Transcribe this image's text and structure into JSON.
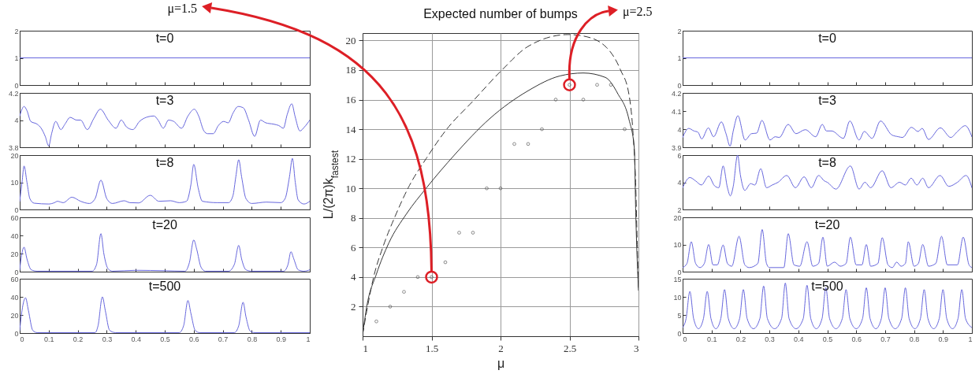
{
  "chart_data": [
    {
      "type": "line",
      "title": "t=0",
      "color": "#6666dd",
      "x": [
        0,
        1
      ],
      "values": [
        1,
        1
      ],
      "xlim": [
        0,
        1
      ],
      "ylim": [
        0,
        2
      ],
      "xticks": [
        0,
        0.1,
        0.2,
        0.3,
        0.4,
        0.5,
        0.6,
        0.7,
        0.8,
        0.9,
        1
      ],
      "yticks": [
        0,
        1,
        2
      ],
      "tick_labels": "y"
    },
    {
      "type": "line",
      "title": "t=3",
      "color": "#6666dd",
      "x": [
        0,
        0.015,
        0.025,
        0.038,
        0.06,
        0.074,
        0.088,
        0.1,
        0.11,
        0.124,
        0.142,
        0.156,
        0.174,
        0.196,
        0.21,
        0.233,
        0.255,
        0.278,
        0.305,
        0.332,
        0.35,
        0.368,
        0.39,
        0.413,
        0.436,
        0.463,
        0.477,
        0.495,
        0.513,
        0.531,
        0.558,
        0.58,
        0.602,
        0.617,
        0.635,
        0.648,
        0.667,
        0.685,
        0.703,
        0.719,
        0.735,
        0.753,
        0.771,
        0.789,
        0.81,
        0.83,
        0.848,
        0.875,
        0.893,
        0.909,
        0.922,
        0.938,
        0.949,
        0.966,
        0.982,
        1
      ],
      "values": [
        4.03,
        4.1,
        4.07,
        3.99,
        3.97,
        3.94,
        3.88,
        3.81,
        3.9,
        3.99,
        3.93,
        3.97,
        4.02,
        4,
        4,
        3.93,
        4.01,
        4.08,
        4,
        3.94,
        4,
        3.95,
        3.93,
        3.99,
        4.02,
        4.03,
        4,
        3.94,
        4,
        3.99,
        3.94,
        4.03,
        4.08,
        4.03,
        3.92,
        3.9,
        3.9,
        3.96,
        3.99,
        3.98,
        4.05,
        4.1,
        4.09,
        4,
        3.88,
        4,
        3.98,
        3.97,
        3.96,
        3.94,
        4.04,
        4.12,
        4.03,
        3.92,
        3.95,
        4
      ],
      "xlim": [
        0,
        1
      ],
      "ylim": [
        3.8,
        4.2
      ],
      "xticks": [
        0,
        0.1,
        0.2,
        0.3,
        0.4,
        0.5,
        0.6,
        0.7,
        0.8,
        0.9,
        1
      ],
      "yticks": [
        3.8,
        4,
        4.2
      ],
      "tick_labels": "y"
    },
    {
      "type": "line",
      "title": "t=8",
      "color": "#6666dd",
      "x": [
        0,
        0.008,
        0.015,
        0.025,
        0.035,
        0.05,
        0.1,
        0.12,
        0.13,
        0.15,
        0.18,
        0.21,
        0.24,
        0.26,
        0.28,
        0.3,
        0.32,
        0.36,
        0.38,
        0.41,
        0.45,
        0.48,
        0.52,
        0.55,
        0.575,
        0.59,
        0.6,
        0.615,
        0.63,
        0.68,
        0.72,
        0.735,
        0.745,
        0.755,
        0.765,
        0.78,
        0.8,
        0.85,
        0.9,
        0.915,
        0.93,
        0.94,
        0.95,
        0.96,
        0.98,
        1
      ],
      "values": [
        3,
        10,
        16,
        10,
        4,
        2.3,
        2,
        2.5,
        3,
        2.5,
        4.5,
        3,
        2.2,
        4,
        10.8,
        4,
        2.2,
        3.2,
        2.5,
        2.4,
        5.2,
        3,
        3.2,
        2.5,
        3,
        9,
        16.6,
        8,
        3,
        2.5,
        2.5,
        5,
        12,
        18.3,
        12,
        4,
        2.2,
        2.7,
        2.5,
        4,
        12,
        18.8,
        10,
        3.5,
        2,
        3
      ],
      "xlim": [
        0,
        1
      ],
      "ylim": [
        0,
        20
      ],
      "xticks": [
        0,
        0.1,
        0.2,
        0.3,
        0.4,
        0.5,
        0.6,
        0.7,
        0.8,
        0.9,
        1
      ],
      "yticks": [
        0,
        10,
        20
      ],
      "tick_labels": "y"
    },
    {
      "type": "line",
      "title": "t=20",
      "color": "#6666dd",
      "x": [
        0,
        0.005,
        0.015,
        0.025,
        0.04,
        0.06,
        0.25,
        0.265,
        0.28,
        0.29,
        0.305,
        0.32,
        0.4,
        0.5,
        0.57,
        0.585,
        0.6,
        0.61,
        0.625,
        0.64,
        0.72,
        0.74,
        0.755,
        0.765,
        0.78,
        0.8,
        0.91,
        0.925,
        0.935,
        0.945,
        0.96,
        0.98,
        1
      ],
      "values": [
        2,
        15,
        27,
        14,
        2,
        0.5,
        0.5,
        8,
        42,
        20,
        3,
        0.5,
        1.5,
        1,
        0.5,
        10,
        35,
        25,
        5,
        0.5,
        0.5,
        8,
        29,
        14,
        2,
        0.5,
        0.5,
        8,
        22,
        14,
        2,
        0.5,
        2
      ],
      "xlim": [
        0,
        1
      ],
      "ylim": [
        0,
        60
      ],
      "xticks": [
        0,
        0.1,
        0.2,
        0.3,
        0.4,
        0.5,
        0.6,
        0.7,
        0.8,
        0.9,
        1
      ],
      "yticks": [
        0,
        20,
        40,
        60
      ],
      "tick_labels": "y"
    },
    {
      "type": "line",
      "title": "t=500",
      "color": "#6666dd",
      "x": [
        0,
        0.008,
        0.02,
        0.03,
        0.045,
        0.06,
        0.26,
        0.27,
        0.285,
        0.295,
        0.31,
        0.33,
        0.55,
        0.565,
        0.58,
        0.59,
        0.605,
        0.62,
        0.74,
        0.755,
        0.77,
        0.78,
        0.795,
        0.81,
        1
      ],
      "values": [
        3,
        25,
        39,
        25,
        3,
        0.5,
        0.5,
        8,
        40,
        25,
        3,
        0.5,
        0.5,
        8,
        36,
        22,
        3,
        0.5,
        0.5,
        8,
        34,
        18,
        2,
        0.5,
        0.5
      ],
      "xlim": [
        0,
        1
      ],
      "ylim": [
        0,
        60
      ],
      "xticks": [
        0,
        0.1,
        0.2,
        0.3,
        0.4,
        0.5,
        0.6,
        0.7,
        0.8,
        0.9,
        1
      ],
      "yticks": [
        0,
        20,
        40,
        60
      ]
    },
    {
      "type": "line",
      "title": "Expected number of bumps",
      "xlabel": "μ",
      "ylabel": "L/(2π)k$_{fastest}$",
      "xlim": [
        1,
        3
      ],
      "ylim": [
        0,
        20.5
      ],
      "xticks": [
        1,
        1.5,
        2,
        2.5,
        3
      ],
      "yticks": [
        2,
        4,
        6,
        8,
        10,
        12,
        14,
        16,
        18,
        20
      ],
      "grid": true,
      "series": [
        {
          "type": "line",
          "line_style": "dashed",
          "color": "#333333",
          "x": [
            1,
            1.04,
            1.08,
            1.15,
            1.24,
            1.34,
            1.46,
            1.61,
            1.8,
            2.01,
            2.2,
            2.49,
            2.6,
            2.76,
            2.87,
            2.93,
            2.96,
            2.98,
            2.99,
            3
          ],
          "values": [
            0.1,
            2.2,
            4,
            6.1,
            8.2,
            10.2,
            12,
            14,
            15.9,
            18,
            19.6,
            20.4,
            20.3,
            19.6,
            18,
            16.4,
            13.8,
            10.2,
            6.7,
            3.3
          ]
        },
        {
          "type": "line",
          "line_style": "solid",
          "color": "#333333",
          "x": [
            1,
            1.03,
            1.1,
            1.19,
            1.32,
            1.46,
            1.67,
            1.92,
            2.2,
            2.43,
            2.6,
            2.76,
            2.85,
            2.93,
            2.97,
            2.98,
            3
          ],
          "values": [
            0.1,
            2,
            4.2,
            6.3,
            8.3,
            10,
            12.3,
            14.7,
            16.6,
            17.6,
            17.8,
            17.5,
            16.4,
            14.7,
            12.7,
            8.4,
            3.1
          ]
        },
        {
          "type": "scatter",
          "marker": "circle",
          "color": "#555555",
          "x": [
            1.1,
            1.2,
            1.3,
            1.4,
            1.5,
            1.6,
            1.7,
            1.8,
            1.9,
            2,
            2.1,
            2.2,
            2.3,
            2.4,
            2.5,
            2.6,
            2.7,
            2.8,
            2.9
          ],
          "values": [
            1,
            2,
            3,
            4,
            4,
            5,
            7,
            7,
            10,
            10,
            13,
            13,
            14,
            16,
            17,
            16,
            17,
            17,
            14
          ]
        }
      ],
      "annotations": [
        {
          "text": "μ=1.5",
          "x": 1.5,
          "y": 4
        },
        {
          "text": "μ=2.5",
          "x": 2.5,
          "y": 17
        }
      ]
    },
    {
      "type": "line",
      "title": "t=0",
      "color": "#6666dd",
      "x": [
        0,
        1
      ],
      "values": [
        1,
        1
      ],
      "xlim": [
        0,
        1
      ],
      "ylim": [
        0,
        2
      ],
      "xticks": [
        0,
        0.1,
        0.2,
        0.3,
        0.4,
        0.5,
        0.6,
        0.7,
        0.8,
        0.9,
        1
      ],
      "yticks": [
        0,
        1,
        2
      ],
      "tick_labels": "y"
    },
    {
      "type": "line",
      "title": "t=3",
      "color": "#6666dd",
      "x": [
        0,
        0.021,
        0.039,
        0.053,
        0.066,
        0.089,
        0.107,
        0.134,
        0.15,
        0.164,
        0.175,
        0.191,
        0.216,
        0.238,
        0.256,
        0.274,
        0.302,
        0.32,
        0.334,
        0.365,
        0.392,
        0.424,
        0.46,
        0.483,
        0.497,
        0.515,
        0.556,
        0.578,
        0.61,
        0.628,
        0.655,
        0.684,
        0.723,
        0.746,
        0.76,
        0.791,
        0.814,
        0.828,
        0.85,
        0.891,
        0.927,
        0.95,
        0.977,
        1
      ],
      "values": [
        3.954,
        4.004,
        3.99,
        3.983,
        3.946,
        4.007,
        3.958,
        4.04,
        3.975,
        3.906,
        3.99,
        4.074,
        3.94,
        3.975,
        3.978,
        4.048,
        3.94,
        3.958,
        3.954,
        4.026,
        3.975,
        3.997,
        3.958,
        4.026,
        3.99,
        3.99,
        3.949,
        4.045,
        3.94,
        3.987,
        3.949,
        4.045,
        3.968,
        3.958,
        3.954,
        4.01,
        3.987,
        4.004,
        3.943,
        4.007,
        3.954,
        3.987,
        4.019,
        3.958
      ],
      "xlim": [
        0,
        1
      ],
      "ylim": [
        3.9,
        4.2
      ],
      "xticks": [
        0,
        0.1,
        0.2,
        0.3,
        0.4,
        0.5,
        0.6,
        0.7,
        0.8,
        0.9,
        1
      ],
      "yticks": [
        3.9,
        4,
        4.1,
        4.2
      ],
      "tick_labels": "y"
    },
    {
      "type": "line",
      "title": "t=8",
      "color": "#6666dd",
      "x": [
        0,
        0.025,
        0.045,
        0.065,
        0.09,
        0.11,
        0.125,
        0.14,
        0.155,
        0.165,
        0.175,
        0.19,
        0.2,
        0.215,
        0.235,
        0.25,
        0.27,
        0.29,
        0.31,
        0.33,
        0.36,
        0.39,
        0.42,
        0.445,
        0.47,
        0.49,
        0.5,
        0.53,
        0.58,
        0.61,
        0.63,
        0.65,
        0.69,
        0.72,
        0.75,
        0.77,
        0.79,
        0.81,
        0.83,
        0.85,
        0.89,
        0.92,
        0.95,
        0.98,
        1
      ],
      "values": [
        3.6,
        4.35,
        4.1,
        3.8,
        4.45,
        3.75,
        3.6,
        5.2,
        3.6,
        3,
        3.7,
        6,
        4.5,
        3.4,
        3.9,
        3.8,
        5,
        3.6,
        3.8,
        4,
        4.5,
        3.6,
        4.4,
        3.6,
        4.5,
        4.1,
        4,
        3.5,
        5.2,
        3.5,
        4,
        3.6,
        4.85,
        3.6,
        4,
        3.8,
        4.3,
        3.8,
        4.3,
        3.6,
        4.5,
        3.7,
        4,
        4.5,
        3.6
      ],
      "xlim": [
        0,
        1
      ],
      "ylim": [
        2,
        6
      ],
      "xticks": [
        0,
        0.1,
        0.2,
        0.3,
        0.4,
        0.5,
        0.6,
        0.7,
        0.8,
        0.9,
        1
      ],
      "yticks": [
        2,
        4,
        6
      ],
      "tick_labels": "y"
    },
    {
      "type": "line",
      "title": "t=20",
      "color": "#6666dd",
      "x": [
        0,
        0.015,
        0.03,
        0.045,
        0.06,
        0.075,
        0.09,
        0.105,
        0.12,
        0.14,
        0.155,
        0.17,
        0.195,
        0.215,
        0.23,
        0.26,
        0.275,
        0.29,
        0.3,
        0.35,
        0.365,
        0.385,
        0.405,
        0.43,
        0.45,
        0.47,
        0.485,
        0.5,
        0.525,
        0.545,
        0.565,
        0.58,
        0.6,
        0.62,
        0.635,
        0.65,
        0.675,
        0.69,
        0.71,
        0.725,
        0.74,
        0.755,
        0.77,
        0.78,
        0.8,
        0.815,
        0.83,
        0.85,
        0.875,
        0.895,
        0.915,
        0.95,
        0.97,
        0.99,
        1
      ],
      "values": [
        1.5,
        3,
        11,
        3,
        1.5,
        3,
        10,
        2.5,
        2.5,
        9.8,
        3,
        2,
        13,
        2.5,
        1.5,
        3,
        15.5,
        3,
        1.5,
        1.5,
        14,
        2.5,
        2,
        11,
        2,
        3,
        12.7,
        2,
        3.5,
        2,
        3,
        12.7,
        2.5,
        2.5,
        10,
        2,
        3,
        12.5,
        2.5,
        1.5,
        3.5,
        2,
        3,
        11,
        2,
        3,
        10,
        2,
        3,
        13,
        2.5,
        2.5,
        12.7,
        2.5,
        1.5
      ],
      "xlim": [
        0,
        1
      ],
      "ylim": [
        0,
        20
      ],
      "xticks": [
        0,
        0.1,
        0.2,
        0.3,
        0.4,
        0.5,
        0.6,
        0.7,
        0.8,
        0.9,
        1
      ],
      "yticks": [
        0,
        10,
        20
      ],
      "tick_labels": "y"
    },
    {
      "type": "line",
      "title": "t=500",
      "color": "#6666dd",
      "x": [
        0,
        0.012,
        0.025,
        0.038,
        0.055,
        0.072,
        0.085,
        0.098,
        0.115,
        0.132,
        0.145,
        0.158,
        0.178,
        0.197,
        0.21,
        0.223,
        0.245,
        0.267,
        0.28,
        0.293,
        0.318,
        0.342,
        0.355,
        0.368,
        0.392,
        0.417,
        0.43,
        0.443,
        0.462,
        0.482,
        0.495,
        0.508,
        0.53,
        0.552,
        0.565,
        0.578,
        0.6,
        0.622,
        0.635,
        0.648,
        0.668,
        0.687,
        0.7,
        0.713,
        0.735,
        0.757,
        0.77,
        0.783,
        0.803,
        0.822,
        0.835,
        0.848,
        0.868,
        0.887,
        0.9,
        0.913,
        0.933,
        0.952,
        0.965,
        0.978,
        1
      ],
      "values": [
        1.5,
        4,
        11.5,
        4,
        1.2,
        4,
        11.5,
        4,
        1.2,
        4,
        12,
        4,
        1.2,
        4,
        12,
        4,
        1.2,
        4,
        13,
        4,
        1.2,
        4,
        13.8,
        4,
        1.2,
        4,
        13.2,
        4,
        1.2,
        4,
        12.5,
        4,
        1.2,
        4,
        12,
        4,
        1.2,
        4,
        12.5,
        4,
        1.2,
        4,
        12.5,
        4,
        1.2,
        4,
        12.5,
        4,
        1.2,
        4,
        12,
        4,
        1.2,
        4,
        12,
        4,
        1.2,
        4,
        12,
        4,
        1.5
      ],
      "xlim": [
        0,
        1
      ],
      "ylim": [
        0,
        15
      ],
      "xticks": [
        0,
        0.1,
        0.2,
        0.3,
        0.4,
        0.5,
        0.6,
        0.7,
        0.8,
        0.9,
        1
      ],
      "yticks": [
        0,
        5,
        10,
        15
      ]
    }
  ]
}
